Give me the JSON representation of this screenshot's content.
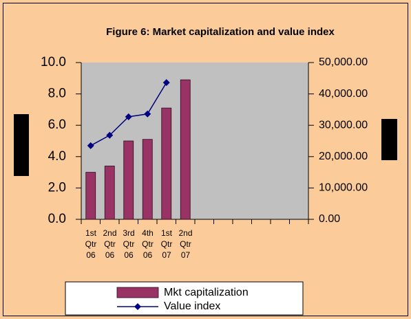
{
  "chart_data": {
    "type": "bar_line",
    "title": "Figure 6: Market capitalization and value index",
    "categories": [
      "1st Qtr 06",
      "2nd Qtr 06",
      "3rd Qtr 06",
      "4th Qtr 06",
      "1st Qtr 07",
      "2nd Qtr 07",
      null,
      null,
      null,
      null,
      null,
      null
    ],
    "series": [
      {
        "name": "Mkt capitalization",
        "type": "bar",
        "color": "#993366",
        "values": [
          3.0,
          3.4,
          5.0,
          5.1,
          7.1,
          8.9,
          null,
          null,
          null,
          null,
          null,
          null
        ]
      },
      {
        "name": "Value index",
        "type": "line",
        "axis": "y2",
        "color": "#000080",
        "values": [
          23500,
          26800,
          32700,
          33600,
          43600,
          null,
          null,
          null,
          null,
          null,
          null,
          null
        ]
      }
    ],
    "ylim": [
      0,
      10
    ],
    "yticks": [
      {
        "value": 0,
        "label": "0.0"
      },
      {
        "value": 2,
        "label": "2.0"
      },
      {
        "value": 4,
        "label": "4.0"
      },
      {
        "value": 6,
        "label": "6.0"
      },
      {
        "value": 8,
        "label": "8.0"
      },
      {
        "value": 10,
        "label": "10.0"
      }
    ],
    "y2lim": [
      0,
      50000
    ],
    "y2ticks": [
      {
        "value": 0,
        "label": "0.00"
      },
      {
        "value": 10000,
        "label": "10,000.00"
      },
      {
        "value": 20000,
        "label": "20,000.00"
      },
      {
        "value": 30000,
        "label": "30,000.00"
      },
      {
        "value": 40000,
        "label": "40,000.00"
      },
      {
        "value": 50000,
        "label": "50,000.00"
      }
    ],
    "plot_background": "#c0c0c0",
    "legend": "bottom"
  }
}
